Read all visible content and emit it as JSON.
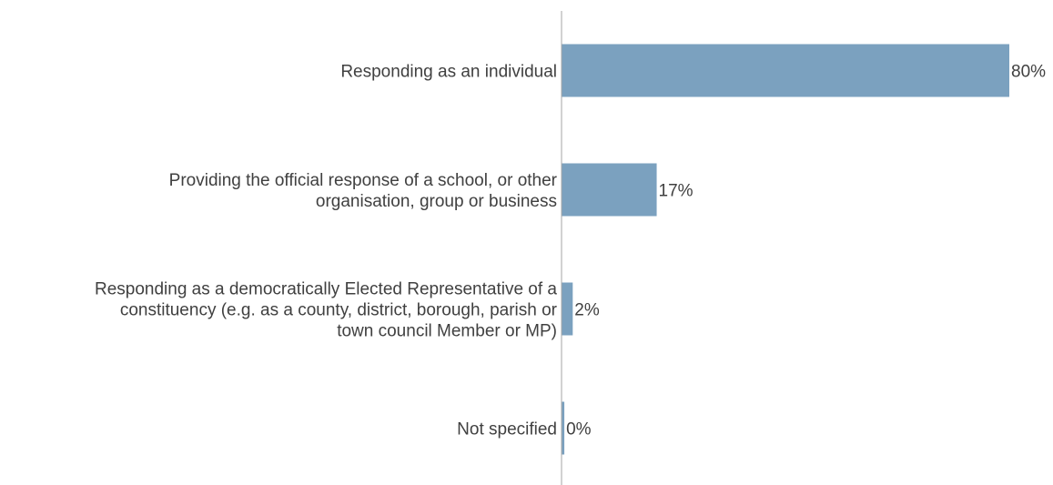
{
  "chart_data": {
    "type": "bar",
    "orientation": "horizontal",
    "categories": [
      "Responding as an individual",
      "Providing the official response of a school, or other organisation, group or business",
      "Responding as a democratically Elected Representative of a constituency (e.g. as a county, district, borough, parish or town council Member or MP)",
      "Not specified"
    ],
    "category_lines": [
      [
        "Responding as an individual"
      ],
      [
        "Providing the official response of a school, or other",
        "organisation, group or business"
      ],
      [
        "Responding as a democratically Elected Representative of a",
        "constituency (e.g. as a county, district, borough, parish or",
        "town council Member or MP)"
      ],
      [
        "Not specified"
      ]
    ],
    "values": [
      80,
      17,
      2,
      0.5
    ],
    "value_labels": [
      "80%",
      "17%",
      "2%",
      "0%"
    ],
    "unit": "%",
    "xlim": [
      0,
      80
    ],
    "title": "",
    "xlabel": "",
    "ylabel": "",
    "grid": false,
    "legend": "none",
    "bar_color": "#7ba1bf",
    "axis_color": "#a6a6a6",
    "text_color": "#404040"
  }
}
